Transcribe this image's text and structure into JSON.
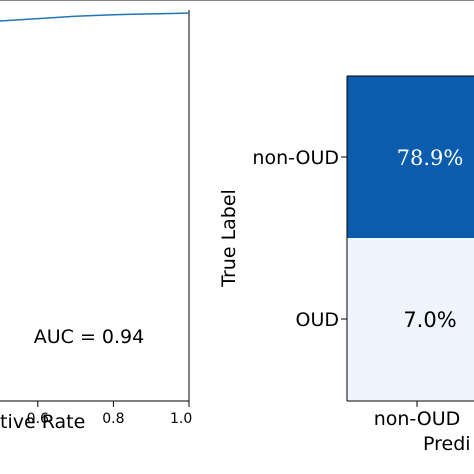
{
  "colors": {
    "roc_line": "#1f77b4",
    "cm_dark": "#0b5cad",
    "cm_light": "#eef5fc",
    "frame": "#000000",
    "text_dark_cell": "#ffffff",
    "text_light_cell": "#000000"
  },
  "chart_data": [
    {
      "type": "line",
      "xlabel": "tive Rate",
      "ylabel": "",
      "xlim": [
        0.4,
        1.0
      ],
      "ylim": [
        0.0,
        1.0
      ],
      "x_ticks": [
        0.6,
        0.8,
        1.0
      ],
      "x_tick_labels": [
        "0.6",
        "0.8",
        "1.0"
      ],
      "series": [
        {
          "values": [
            [
              0.4,
              0.965
            ],
            [
              0.5,
              0.972
            ],
            [
              0.6,
              0.978
            ],
            [
              0.7,
              0.984
            ],
            [
              0.8,
              0.988
            ],
            [
              0.9,
              0.99
            ],
            [
              1.0,
              0.992
            ]
          ]
        }
      ],
      "annotation": "AUC = 0.94",
      "grid": false
    },
    {
      "type": "heatmap",
      "ylabel": "True Label",
      "xlabel": "Predi",
      "row_labels": [
        "non-OUD",
        "OUD"
      ],
      "col_labels": [
        "non-OUD"
      ],
      "cells": [
        {
          "row": 0,
          "col": 0,
          "text": "78.9%",
          "value": 78.9
        },
        {
          "row": 1,
          "col": 0,
          "text": "7.0%",
          "value": 7.0
        }
      ]
    }
  ]
}
